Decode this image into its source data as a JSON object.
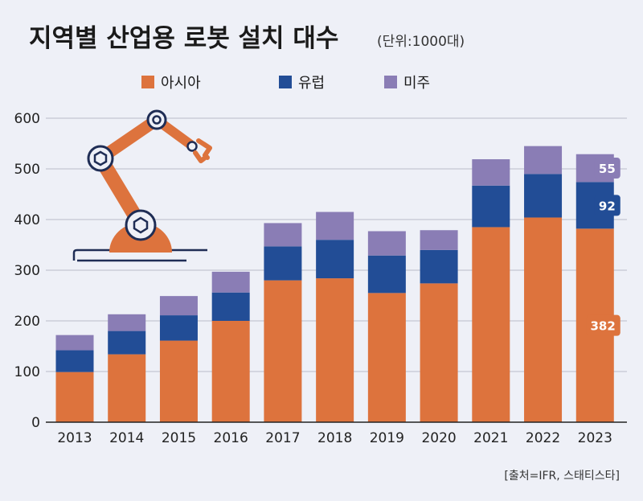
{
  "colors": {
    "background": "#eef0f7",
    "asia": "#dd733d",
    "europe": "#224d96",
    "americas": "#8a7db5",
    "grid": "#b9bdc8",
    "axis": "#222222",
    "robot": "#dd733d",
    "robot_line": "#1f2d55"
  },
  "chart_data": {
    "type": "bar",
    "stacked": true,
    "title": "지역별 산업용 로봇 설치 대수",
    "subtitle": "(단위:1000대)",
    "source": "[출처=IFR, 스태티스타]",
    "categories": [
      "2013",
      "2014",
      "2015",
      "2016",
      "2017",
      "2018",
      "2019",
      "2020",
      "2021",
      "2022",
      "2023"
    ],
    "series": [
      {
        "name": "아시아",
        "color": "#dd733d",
        "values": [
          99,
          134,
          161,
          200,
          280,
          284,
          255,
          274,
          385,
          404,
          382
        ]
      },
      {
        "name": "유럽",
        "color": "#224d96",
        "values": [
          43,
          46,
          50,
          56,
          67,
          76,
          74,
          66,
          82,
          86,
          92
        ]
      },
      {
        "name": "미주",
        "color": "#8a7db5",
        "values": [
          30,
          33,
          38,
          41,
          46,
          55,
          48,
          39,
          52,
          55,
          55
        ]
      }
    ],
    "ylim": [
      0,
      600
    ],
    "yticks": [
      0,
      100,
      200,
      300,
      400,
      500,
      600
    ],
    "grid": true,
    "legend_position": "top",
    "data_labels": [
      {
        "category": "2023",
        "series": "미주",
        "text": "55"
      },
      {
        "category": "2023",
        "series": "유럽",
        "text": "92"
      },
      {
        "category": "2023",
        "series": "아시아",
        "text": "382"
      }
    ]
  }
}
